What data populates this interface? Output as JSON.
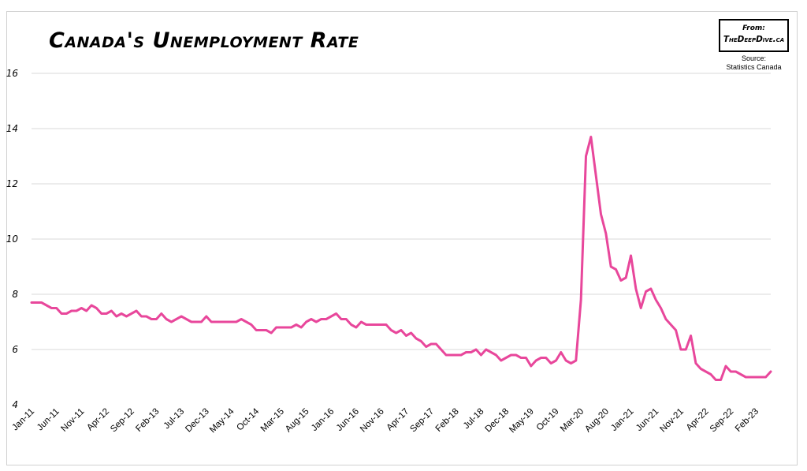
{
  "title": "Canada's Unemployment Rate",
  "badge": {
    "from": "From:",
    "site": "TheDeepDive.ca"
  },
  "source": {
    "label": "Source:",
    "name": "Statistics Canada"
  },
  "colors": {
    "line": "#e8479b",
    "grid": "#d9d9d9"
  },
  "chart_data": {
    "type": "line",
    "title": "Canada's Unemployment Rate",
    "xlabel": "",
    "ylabel": "",
    "ylim": [
      4,
      16
    ],
    "yticks": [
      4,
      6,
      8,
      10,
      12,
      14,
      16
    ],
    "grid": "horizontal",
    "legend": "none",
    "x_start": "Jan-11",
    "x_end": "Apr-23",
    "x_tick_labels": [
      "Jan-11",
      "Jun-11",
      "Nov-11",
      "Apr-12",
      "Sep-12",
      "Feb-13",
      "Jul-13",
      "Dec-13",
      "May-14",
      "Oct-14",
      "Mar-15",
      "Aug-15",
      "Jan-16",
      "Jun-16",
      "Nov-16",
      "Apr-17",
      "Sep-17",
      "Feb-18",
      "Jul-18",
      "Dec-18",
      "May-19",
      "Oct-19",
      "Mar-20",
      "Aug-20",
      "Jan-21",
      "Jun-21",
      "Nov-21",
      "Apr-22",
      "Sep-22",
      "Feb-23"
    ],
    "series": [
      {
        "values": [
          7.7,
          7.7,
          7.7,
          7.6,
          7.5,
          7.5,
          7.3,
          7.3,
          7.4,
          7.4,
          7.5,
          7.4,
          7.6,
          7.5,
          7.3,
          7.3,
          7.4,
          7.2,
          7.3,
          7.2,
          7.3,
          7.4,
          7.2,
          7.2,
          7.1,
          7.1,
          7.3,
          7.1,
          7.0,
          7.1,
          7.2,
          7.1,
          7.0,
          7.0,
          7.0,
          7.2,
          7.0,
          7.0,
          7.0,
          7.0,
          7.0,
          7.0,
          7.1,
          7.0,
          6.9,
          6.7,
          6.7,
          6.7,
          6.6,
          6.8,
          6.8,
          6.8,
          6.8,
          6.9,
          6.8,
          7.0,
          7.1,
          7.0,
          7.1,
          7.1,
          7.2,
          7.3,
          7.1,
          7.1,
          6.9,
          6.8,
          7.0,
          6.9,
          6.9,
          6.9,
          6.9,
          6.9,
          6.7,
          6.6,
          6.7,
          6.5,
          6.6,
          6.4,
          6.3,
          6.1,
          6.2,
          6.2,
          6.0,
          5.8,
          5.8,
          5.8,
          5.8,
          5.9,
          5.9,
          6.0,
          5.8,
          6.0,
          5.9,
          5.8,
          5.6,
          5.7,
          5.8,
          5.8,
          5.7,
          5.7,
          5.4,
          5.6,
          5.7,
          5.7,
          5.5,
          5.6,
          5.9,
          5.6,
          5.5,
          5.6,
          7.8,
          13.0,
          13.7,
          12.3,
          10.9,
          10.2,
          9.0,
          8.9,
          8.5,
          8.6,
          9.4,
          8.2,
          7.5,
          8.1,
          8.2,
          7.8,
          7.5,
          7.1,
          6.9,
          6.7,
          6.0,
          6.0,
          6.5,
          5.5,
          5.3,
          5.2,
          5.1,
          4.9,
          4.9,
          5.4,
          5.2,
          5.2,
          5.1,
          5.0,
          5.0,
          5.0,
          5.0,
          5.0,
          5.2
        ]
      }
    ]
  }
}
